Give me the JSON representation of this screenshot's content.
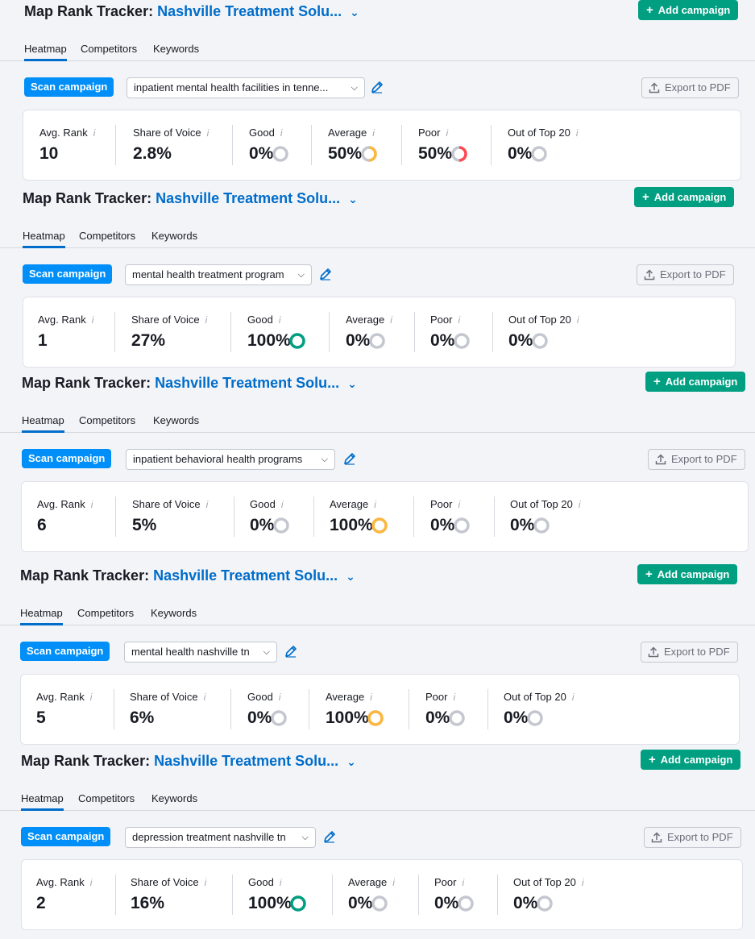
{
  "header": {
    "title_prefix": "Map Rank Tracker:",
    "project_name": "Nashville Treatment Solu...",
    "add_campaign_label": "Add campaign"
  },
  "tabs": [
    "Heatmap",
    "Competitors",
    "Keywords"
  ],
  "scan_label": "Scan campaign",
  "export_label": "Export to PDF",
  "metric_labels": [
    "Avg. Rank",
    "Share of Voice",
    "Good",
    "Average",
    "Poor",
    "Out of Top 20"
  ],
  "info_glyph": "i",
  "colors": {
    "good": "#009f81",
    "average": "#fcb73d",
    "poor": "#ff4953",
    "empty": "#c4c7cf",
    "accent": "#006dca",
    "scan": "#008ff8"
  },
  "campaigns": [
    {
      "keyword": "inpatient mental health facilities in tenne...",
      "avg_rank": "10",
      "share_of_voice": "2.8%",
      "good": "0%",
      "average": "50%",
      "poor": "50%",
      "out_of_top20": "0%"
    },
    {
      "keyword": "mental health treatment program",
      "avg_rank": "1",
      "share_of_voice": "27%",
      "good": "100%",
      "average": "0%",
      "poor": "0%",
      "out_of_top20": "0%"
    },
    {
      "keyword": "inpatient behavioral health programs",
      "avg_rank": "6",
      "share_of_voice": "5%",
      "good": "0%",
      "average": "100%",
      "poor": "0%",
      "out_of_top20": "0%"
    },
    {
      "keyword": "mental health nashville tn",
      "avg_rank": "5",
      "share_of_voice": "6%",
      "good": "0%",
      "average": "100%",
      "poor": "0%",
      "out_of_top20": "0%"
    },
    {
      "keyword": "depression treatment nashville tn",
      "avg_rank": "2",
      "share_of_voice": "16%",
      "good": "100%",
      "average": "0%",
      "poor": "0%",
      "out_of_top20": "0%"
    }
  ]
}
